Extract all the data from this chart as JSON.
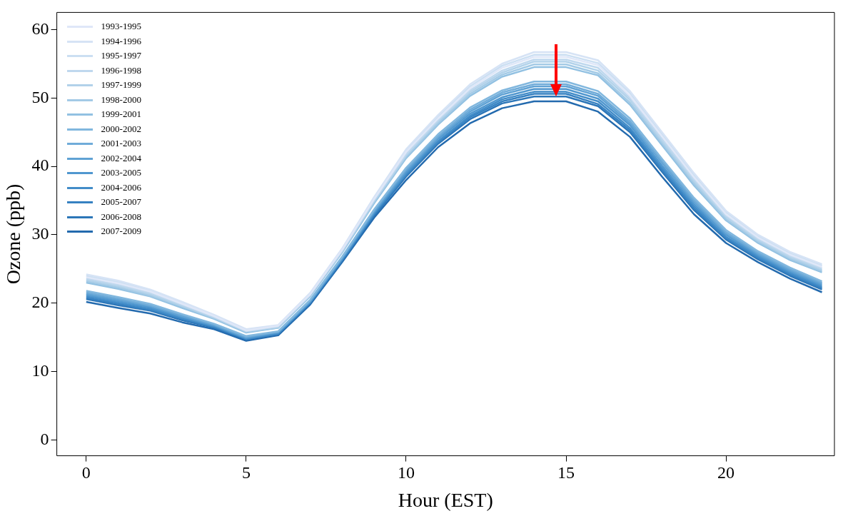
{
  "chart_data": {
    "type": "line",
    "xlabel": "Hour (EST)",
    "ylabel": "Ozone (ppb)",
    "x": [
      0,
      1,
      2,
      3,
      4,
      5,
      6,
      7,
      8,
      9,
      10,
      11,
      12,
      13,
      14,
      15,
      16,
      17,
      18,
      19,
      20,
      21,
      22,
      23
    ],
    "xlim": [
      -0.92,
      23.39
    ],
    "xticks": [
      0,
      5,
      10,
      15,
      20
    ],
    "ylim": [
      -2.3,
      62.5
    ],
    "yticks": [
      0,
      10,
      20,
      30,
      40,
      50,
      60
    ],
    "grid": false,
    "legend": "top left",
    "marker": "none",
    "line_style": "solid",
    "series": [
      {
        "name": "1993-1995",
        "color": "#dfe7f8",
        "values": [
          23.8,
          22.9,
          21.7,
          19.9,
          18.1,
          16.0,
          16.7,
          21.3,
          27.8,
          35.2,
          42.1,
          47.0,
          51.4,
          54.4,
          56.0,
          56.0,
          54.8,
          50.3,
          44.4,
          38.4,
          33.0,
          29.6,
          27.1,
          25.3
        ]
      },
      {
        "name": "1994-1996",
        "color": "#d6e3f5",
        "values": [
          24.2,
          23.3,
          22.0,
          20.2,
          18.3,
          16.2,
          16.8,
          21.5,
          28.0,
          35.5,
          42.5,
          47.5,
          52.0,
          55.0,
          56.7,
          56.7,
          55.5,
          51.0,
          45.0,
          39.0,
          33.5,
          30.0,
          27.5,
          25.7
        ]
      },
      {
        "name": "1995-1997",
        "color": "#cbdff2",
        "values": [
          24.0,
          23.1,
          21.8,
          20.1,
          18.2,
          16.1,
          16.7,
          21.4,
          27.9,
          35.4,
          42.3,
          47.3,
          51.7,
          54.7,
          56.3,
          56.3,
          55.1,
          50.7,
          44.7,
          38.7,
          33.3,
          29.8,
          27.3,
          25.5
        ]
      },
      {
        "name": "1996-1998",
        "color": "#bfd8ee",
        "values": [
          23.6,
          22.7,
          21.5,
          19.8,
          18.0,
          15.9,
          16.6,
          21.2,
          27.7,
          35.1,
          41.8,
          46.8,
          51.1,
          54.0,
          55.6,
          55.6,
          54.4,
          50.0,
          44.0,
          38.1,
          32.8,
          29.4,
          26.9,
          25.1
        ]
      },
      {
        "name": "1997-1999",
        "color": "#b2d2ea",
        "values": [
          23.4,
          22.5,
          21.3,
          19.6,
          17.9,
          15.9,
          16.5,
          21.2,
          27.6,
          34.9,
          41.6,
          46.6,
          50.9,
          53.7,
          55.3,
          55.3,
          54.0,
          49.7,
          43.7,
          37.8,
          32.6,
          29.2,
          26.7,
          24.9
        ]
      },
      {
        "name": "1998-2000",
        "color": "#a3cae6",
        "values": [
          23.2,
          22.3,
          21.1,
          19.5,
          17.8,
          15.8,
          16.4,
          21.1,
          27.5,
          34.8,
          41.4,
          46.3,
          50.6,
          53.4,
          54.9,
          54.9,
          53.6,
          49.3,
          43.4,
          37.5,
          32.3,
          29.0,
          26.5,
          24.7
        ]
      },
      {
        "name": "1999-2001",
        "color": "#92c1e2",
        "values": [
          23.0,
          22.1,
          21.0,
          19.3,
          17.7,
          15.7,
          16.4,
          21.0,
          27.4,
          34.6,
          41.2,
          46.1,
          50.3,
          53.1,
          54.5,
          54.5,
          53.3,
          49.0,
          43.1,
          37.2,
          32.1,
          28.8,
          26.3,
          24.5
        ]
      },
      {
        "name": "2000-2002",
        "color": "#81b7de",
        "values": [
          21.8,
          20.9,
          19.9,
          18.4,
          17.0,
          15.2,
          15.9,
          20.5,
          26.8,
          33.7,
          39.8,
          44.7,
          48.6,
          51.1,
          52.4,
          52.4,
          51.0,
          47.0,
          41.1,
          35.4,
          30.7,
          27.6,
          25.2,
          23.2
        ]
      },
      {
        "name": "2001-2003",
        "color": "#70acd9",
        "values": [
          21.6,
          20.7,
          19.7,
          18.3,
          16.9,
          15.1,
          15.8,
          20.4,
          26.7,
          33.6,
          39.6,
          44.4,
          48.3,
          50.8,
          52.0,
          52.0,
          50.6,
          46.6,
          40.8,
          35.1,
          30.4,
          27.4,
          25.0,
          23.0
        ]
      },
      {
        "name": "2002-2004",
        "color": "#60a2d4",
        "values": [
          21.4,
          20.5,
          19.6,
          18.1,
          16.8,
          15.0,
          15.8,
          20.3,
          26.6,
          33.4,
          39.4,
          44.2,
          48.0,
          50.5,
          51.7,
          51.7,
          50.3,
          46.3,
          40.5,
          34.8,
          30.2,
          27.2,
          24.8,
          22.8
        ]
      },
      {
        "name": "2003-2005",
        "color": "#5097cf",
        "values": [
          21.2,
          20.3,
          19.4,
          18.0,
          16.7,
          14.9,
          15.7,
          20.2,
          26.5,
          33.3,
          39.1,
          44.0,
          47.7,
          50.1,
          51.3,
          51.3,
          49.9,
          46.0,
          40.1,
          34.5,
          30.0,
          27.0,
          24.6,
          22.6
        ]
      },
      {
        "name": "2004-2006",
        "color": "#428cc8",
        "values": [
          21.0,
          20.1,
          19.2,
          17.8,
          16.6,
          14.8,
          15.6,
          20.1,
          26.4,
          33.1,
          38.9,
          43.7,
          47.4,
          49.8,
          50.9,
          50.9,
          49.5,
          45.6,
          39.8,
          34.2,
          29.7,
          26.8,
          24.4,
          22.4
        ]
      },
      {
        "name": "2005-2007",
        "color": "#3681c1",
        "values": [
          20.8,
          19.9,
          19.0,
          17.7,
          16.5,
          14.8,
          15.5,
          20.1,
          26.3,
          33.0,
          38.7,
          43.5,
          47.2,
          49.5,
          50.6,
          50.6,
          49.1,
          45.3,
          39.5,
          33.9,
          29.5,
          26.6,
          24.2,
          22.2
        ]
      },
      {
        "name": "2006-2008",
        "color": "#2c76b8",
        "values": [
          20.6,
          19.7,
          18.9,
          17.5,
          16.4,
          14.7,
          15.5,
          20.0,
          26.2,
          32.8,
          38.5,
          43.3,
          46.9,
          49.2,
          50.2,
          50.2,
          48.8,
          45.0,
          39.2,
          33.6,
          29.3,
          26.4,
          24.0,
          22.0
        ]
      },
      {
        "name": "2007-2009",
        "color": "#236aae",
        "values": [
          20.2,
          19.3,
          18.5,
          17.2,
          16.2,
          14.5,
          15.3,
          19.8,
          26.0,
          32.5,
          38.0,
          42.8,
          46.3,
          48.5,
          49.5,
          49.5,
          48.0,
          44.3,
          38.5,
          33.0,
          28.8,
          26.0,
          23.6,
          21.6
        ]
      }
    ]
  }
}
